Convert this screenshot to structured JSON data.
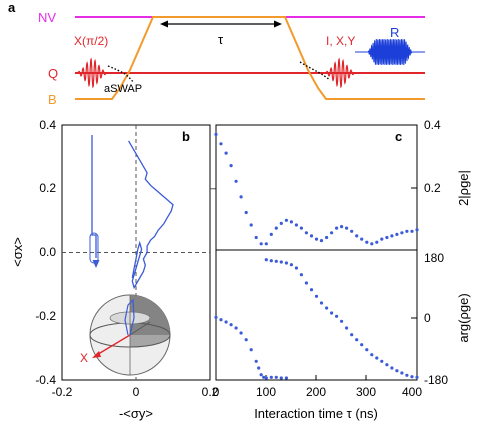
{
  "colors": {
    "nv": "#e62ce6",
    "q": "#e0262b",
    "b": "#f39a2c",
    "pulse_red": "#e0262b",
    "pulse_blue": "#1b3fd8",
    "data_blue": "#3b5bd9",
    "axis": "#000000"
  },
  "panel_a": {
    "label": "a",
    "nv_label": "NV",
    "q_label": "Q",
    "b_label": "B",
    "x_pulse_label": "X(π/2)",
    "tau_label": "τ",
    "aswap_label": "aSWAP",
    "ixy_label": "I, X,Y",
    "r_label": "R",
    "icons": [
      "double-arrow-icon",
      "microwave-pulse-icon",
      "readout-pulse-icon"
    ]
  },
  "panel_b": {
    "label": "b",
    "xlabel": "-<σy>",
    "ylabel": "<σx>",
    "x_ticks": [
      "-0.2",
      "0",
      "0.2"
    ],
    "y_ticks": [
      "0.4",
      "0.2",
      "0.0",
      "-0.2",
      "-0.4"
    ],
    "bloch_x_label": "X",
    "icons": [
      "bloch-sphere-icon"
    ]
  },
  "panel_c": {
    "label": "c",
    "xlabel": "Interaction time τ (ns)",
    "x_ticks": [
      "0",
      "100",
      "200",
      "300",
      "400"
    ],
    "top_ylabel": "2|ρge|",
    "top_y_ticks": [
      "0.4",
      "0.2"
    ],
    "bottom_ylabel": "arg(ρge)",
    "bottom_y_ticks": [
      "180",
      "0",
      "-180"
    ]
  },
  "chart_data": [
    {
      "type": "line",
      "panel": "b",
      "xlabel": "-<σy>",
      "ylabel": "<σx>",
      "xlim": [
        -0.2,
        0.2
      ],
      "ylim": [
        -0.4,
        0.4
      ],
      "grid": false,
      "x": [
        -0.02,
        -0.01,
        0.0,
        0.01,
        0.02,
        0.03,
        0.025,
        0.04,
        0.05,
        0.06,
        0.07,
        0.08,
        0.09,
        0.1,
        0.095,
        0.085,
        0.075,
        0.06,
        0.05,
        0.04,
        0.03,
        0.03,
        0.02,
        0.025,
        0.02,
        0.01,
        0.0,
        -0.005,
        -0.01,
        -0.005,
        0.0,
        0.005,
        0.01,
        0.015,
        0.01,
        0.005,
        0.0,
        -0.005,
        -0.01
      ],
      "y": [
        0.35,
        0.33,
        0.31,
        0.29,
        0.27,
        0.25,
        0.23,
        0.21,
        0.2,
        0.19,
        0.18,
        0.17,
        0.16,
        0.15,
        0.13,
        0.11,
        0.09,
        0.07,
        0.05,
        0.04,
        0.02,
        0.0,
        -0.02,
        -0.04,
        -0.06,
        -0.08,
        -0.1,
        -0.11,
        -0.09,
        -0.07,
        -0.05,
        -0.03,
        -0.01,
        0.01,
        0.03,
        0.01,
        -0.02,
        -0.05,
        -0.08
      ]
    },
    {
      "type": "scatter",
      "panel": "c-top",
      "xlabel": "Interaction time τ (ns)",
      "ylabel": "2|ρge|",
      "xlim": [
        0,
        400
      ],
      "ylim": [
        0.0,
        0.4
      ],
      "x": [
        0,
        10,
        20,
        30,
        40,
        50,
        60,
        70,
        80,
        90,
        100,
        110,
        120,
        130,
        140,
        150,
        160,
        170,
        180,
        190,
        200,
        210,
        220,
        230,
        240,
        250,
        260,
        270,
        280,
        290,
        300,
        310,
        320,
        330,
        340,
        350,
        360,
        370,
        380,
        390,
        400
      ],
      "y": [
        0.37,
        0.34,
        0.31,
        0.27,
        0.22,
        0.17,
        0.12,
        0.08,
        0.04,
        0.02,
        0.02,
        0.05,
        0.07,
        0.085,
        0.095,
        0.09,
        0.08,
        0.07,
        0.055,
        0.045,
        0.035,
        0.03,
        0.04,
        0.055,
        0.07,
        0.075,
        0.07,
        0.06,
        0.045,
        0.035,
        0.025,
        0.02,
        0.025,
        0.035,
        0.04,
        0.045,
        0.05,
        0.055,
        0.06,
        0.06,
        0.065
      ]
    },
    {
      "type": "scatter",
      "panel": "c-bottom",
      "xlabel": "Interaction time τ (ns)",
      "ylabel": "arg(ρge)",
      "xlim": [
        0,
        400
      ],
      "ylim": [
        -180,
        180
      ],
      "x": [
        0,
        10,
        20,
        30,
        40,
        50,
        60,
        70,
        80,
        85,
        90,
        95,
        100,
        110,
        120,
        130,
        140,
        100,
        110,
        120,
        130,
        140,
        150,
        160,
        170,
        180,
        190,
        200,
        210,
        220,
        230,
        240,
        250,
        260,
        270,
        280,
        290,
        300,
        310,
        320,
        330,
        340,
        350,
        360,
        370,
        380,
        390,
        400
      ],
      "y": [
        2,
        -5,
        -12,
        -20,
        -30,
        -45,
        -65,
        -95,
        -130,
        -150,
        -170,
        -178,
        -180,
        -178,
        -178,
        -180,
        -180,
        175,
        172,
        170,
        168,
        165,
        160,
        150,
        130,
        105,
        85,
        65,
        45,
        30,
        15,
        5,
        -10,
        -30,
        -50,
        -65,
        -80,
        -95,
        -110,
        -120,
        -130,
        -140,
        -150,
        -158,
        -165,
        -172,
        -176,
        -178
      ]
    }
  ]
}
